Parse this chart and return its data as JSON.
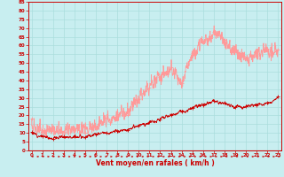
{
  "title": "",
  "xlabel": "Vent moyen/en rafales ( km/h )",
  "bg_color": "#c8eef0",
  "grid_color": "#aadddd",
  "avg_color": "#cc0000",
  "gust_color": "#ff9999",
  "ylim": [
    0,
    85
  ],
  "xlim": [
    -0.3,
    23.3
  ],
  "yticks": [
    0,
    5,
    10,
    15,
    20,
    25,
    30,
    35,
    40,
    45,
    50,
    55,
    60,
    65,
    70,
    75,
    80,
    85
  ],
  "xticks": [
    0,
    1,
    2,
    3,
    4,
    5,
    6,
    7,
    8,
    9,
    10,
    11,
    12,
    13,
    14,
    15,
    16,
    17,
    18,
    19,
    20,
    21,
    22,
    23
  ],
  "marker_hours": [
    0,
    1,
    2,
    3,
    4,
    5,
    6,
    7,
    8,
    9,
    10,
    11,
    12,
    13,
    14,
    15,
    16,
    17,
    18,
    19,
    20,
    21,
    22,
    23
  ],
  "avg_marker_vals": [
    10,
    8,
    7,
    8,
    8,
    8,
    9,
    10,
    11,
    12,
    14,
    16,
    18,
    20,
    22,
    24,
    26,
    28,
    27,
    25,
    25,
    26,
    27,
    30
  ],
  "gust_marker_vals": [
    15,
    12,
    11,
    12,
    13,
    12,
    14,
    17,
    20,
    24,
    30,
    36,
    42,
    48,
    38,
    55,
    62,
    68,
    62,
    56,
    52,
    55,
    58,
    56
  ]
}
